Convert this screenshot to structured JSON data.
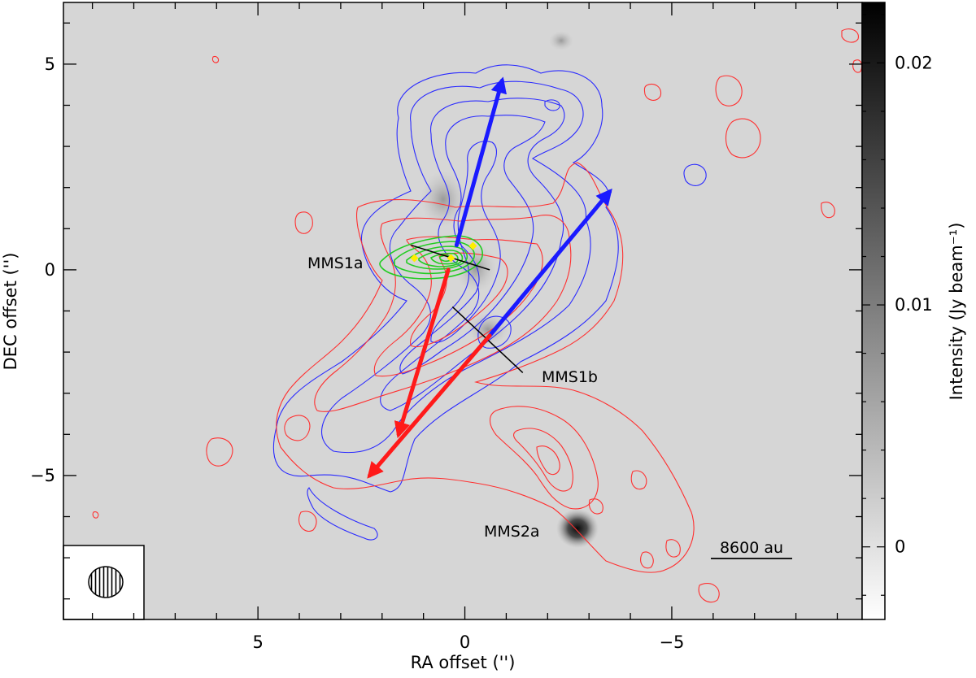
{
  "chart_data": {
    "type": "heatmap",
    "xlabel": "RA offset ('')",
    "ylabel": "DEC offset ('')",
    "x_ticks": [
      {
        "value": 5,
        "label": "5"
      },
      {
        "value": 0,
        "label": "0"
      },
      {
        "value": -5,
        "label": "−5"
      }
    ],
    "y_ticks": [
      {
        "value": 5,
        "label": "5"
      },
      {
        "value": 0,
        "label": "0"
      },
      {
        "value": -5,
        "label": "−5"
      }
    ],
    "xlim": [
      9.7,
      -9.6
    ],
    "ylim": [
      -8.5,
      6.5
    ],
    "colorbar": {
      "label": "Intensity (Jy beam⁻¹)",
      "range": [
        -0.003,
        0.0225
      ],
      "ticks": [
        {
          "value": 0.02,
          "label": "0.02"
        },
        {
          "value": 0.01,
          "label": "0.01"
        },
        {
          "value": 0,
          "label": "0"
        }
      ],
      "colormap": "white-to-black"
    },
    "sources": [
      {
        "name": "MMS1a",
        "label": "MMS1a",
        "x": 0.3,
        "y": 0.3
      },
      {
        "name": "MMS1b",
        "label": "MMS1b",
        "x": -0.6,
        "y": -1.6
      },
      {
        "name": "MMS2a",
        "label": "MMS2a",
        "x": -2.75,
        "y": -6.3
      }
    ],
    "outflows": [
      {
        "component": "blueshifted",
        "color": "#1a1aff",
        "from": [
          0.2,
          0.6
        ],
        "to": [
          -0.9,
          4.6
        ]
      },
      {
        "component": "redshifted",
        "color": "#ff1a1a",
        "from": [
          0.4,
          0.0
        ],
        "to": [
          1.6,
          -4.0
        ]
      },
      {
        "component": "blueshifted",
        "color": "#1a1aff",
        "from": [
          -0.6,
          -1.6
        ],
        "to": [
          -3.5,
          1.9
        ]
      },
      {
        "component": "redshifted",
        "color": "#ff1a1a",
        "from": [
          -0.6,
          -1.6
        ],
        "to": [
          2.3,
          -5.0
        ]
      }
    ],
    "disk_axes": [
      {
        "name": "MMS1a",
        "from": [
          1.3,
          0.6
        ],
        "to": [
          -0.6,
          -0.0
        ]
      },
      {
        "name": "MMS1b",
        "from": [
          0.3,
          -0.9
        ],
        "to": [
          -1.4,
          -2.5
        ]
      }
    ],
    "scale_bar": {
      "label": "8600 au",
      "length_arcsec": 2.0
    },
    "beam": {
      "major_arcsec": 0.7,
      "minor_arcsec": 0.6,
      "hatched": true
    },
    "contour_colors": {
      "blue": "#2a2aff",
      "red": "#ff3030",
      "green": "#22cc22"
    },
    "markers_color": "#ffee00"
  }
}
